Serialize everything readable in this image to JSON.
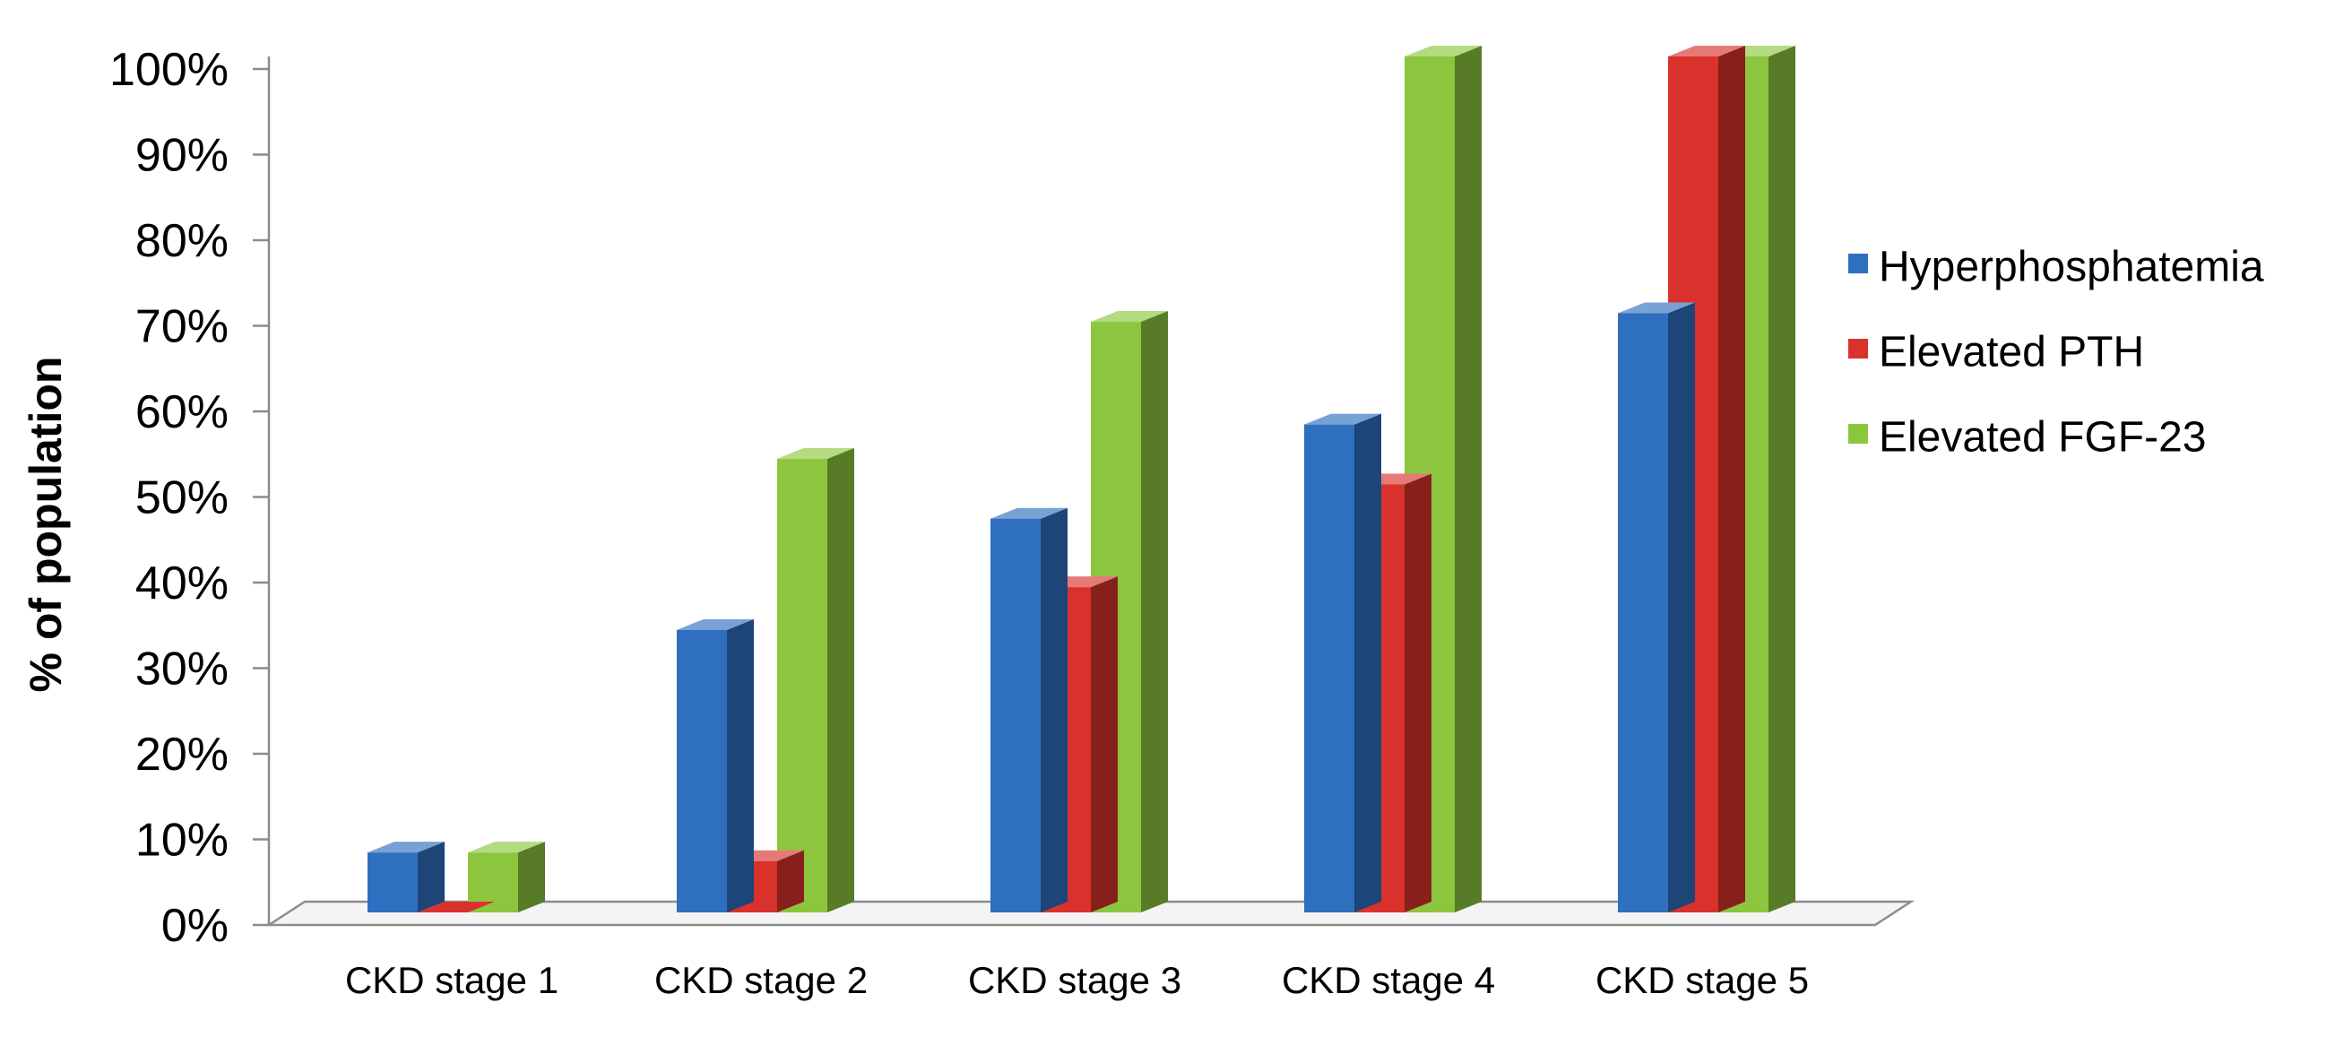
{
  "chart_data": {
    "type": "bar",
    "title": "",
    "xlabel": "",
    "ylabel": "% of population",
    "ylim": [
      0,
      100
    ],
    "yticks": [
      "0%",
      "10%",
      "20%",
      "30%",
      "40%",
      "50%",
      "60%",
      "70%",
      "80%",
      "90%",
      "100%"
    ],
    "categories": [
      "CKD stage 1",
      "CKD stage 2",
      "CKD stage 3",
      "CKD stage 4",
      "CKD stage 5"
    ],
    "series": [
      {
        "name": "Hyperphosphatemia",
        "color": "#2f6fc0",
        "values": [
          7,
          33,
          46,
          57,
          70
        ]
      },
      {
        "name": "Elevated PTH",
        "color": "#d9322c",
        "values": [
          0,
          6,
          38,
          50,
          100
        ]
      },
      {
        "name": "Elevated FGF-23",
        "color": "#8cc63e",
        "values": [
          7,
          53,
          69,
          100,
          100
        ]
      }
    ],
    "legend_position": "right",
    "style": "3d-column"
  }
}
